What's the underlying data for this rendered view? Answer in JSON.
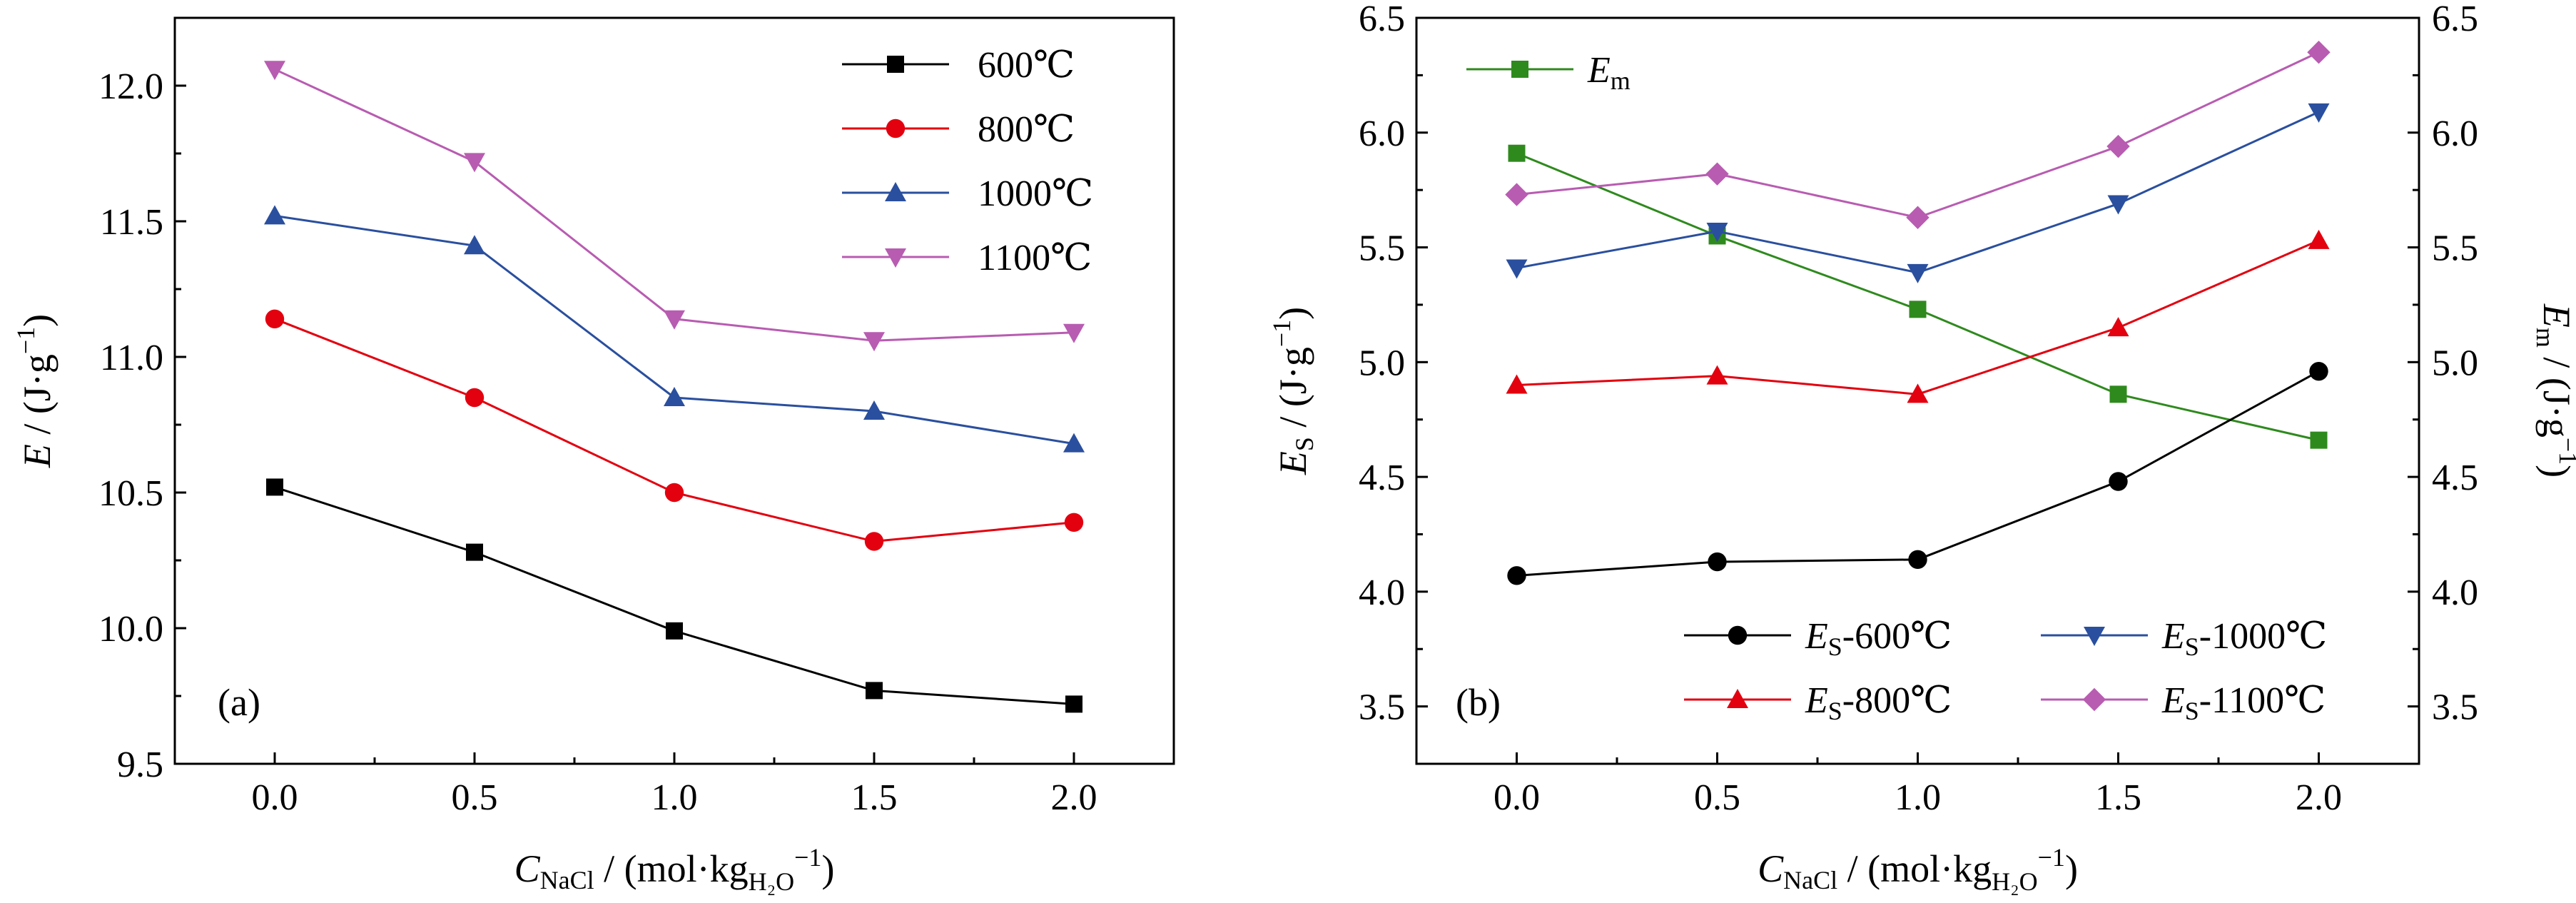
{
  "chart_data": [
    {
      "type": "line",
      "panel_label": "(a)",
      "x": [
        0.0,
        0.5,
        1.0,
        1.5,
        2.0
      ],
      "x_tick_labels": [
        "0.0",
        "0.5",
        "1.0",
        "1.5",
        "2.0"
      ],
      "xlim": [
        -0.25,
        2.25
      ],
      "ylim": [
        9.5,
        12.25
      ],
      "y_ticks": [
        9.5,
        10.0,
        10.5,
        11.0,
        11.5,
        12.0
      ],
      "y_tick_labels": [
        "9.5",
        "10.0",
        "10.5",
        "11.0",
        "11.5",
        "12.0"
      ],
      "xlabel": {
        "main": "C",
        "sub": "NaCl",
        "unit_open": " / (mol·kg",
        "unit_sub": "H₂O",
        "unit_sup": "−1",
        "unit_close": ")"
      },
      "ylabel": {
        "main": "E",
        "unit_open": " / (J·g",
        "unit_sup": "−1",
        "unit_close": ")"
      },
      "legend_position": "top-right",
      "grid": false,
      "series": [
        {
          "name": "600℃",
          "color": "#000000",
          "marker": "square",
          "values": [
            10.52,
            10.28,
            9.99,
            9.77,
            9.72
          ]
        },
        {
          "name": "800℃",
          "color": "#e3000f",
          "marker": "circle",
          "values": [
            11.14,
            10.85,
            10.5,
            10.32,
            10.39
          ]
        },
        {
          "name": "1000℃",
          "color": "#2a4f9e",
          "marker": "triangle-up",
          "values": [
            11.52,
            11.41,
            10.85,
            10.8,
            10.68
          ]
        },
        {
          "name": "1100℃",
          "color": "#b85cb1",
          "marker": "triangle-down",
          "values": [
            12.06,
            11.72,
            11.14,
            11.06,
            11.09
          ]
        }
      ]
    },
    {
      "type": "line",
      "panel_label": "(b)",
      "x": [
        0.0,
        0.5,
        1.0,
        1.5,
        2.0
      ],
      "x_tick_labels": [
        "0.0",
        "0.5",
        "1.0",
        "1.5",
        "2.0"
      ],
      "xlim": [
        -0.25,
        2.25
      ],
      "ylim": [
        3.25,
        6.5
      ],
      "y_ticks": [
        3.5,
        4.0,
        4.5,
        5.0,
        5.5,
        6.0,
        6.5
      ],
      "y_tick_labels": [
        "3.5",
        "4.0",
        "4.5",
        "5.0",
        "5.5",
        "6.0",
        "6.5"
      ],
      "y2lim": [
        3.25,
        6.5
      ],
      "y2_ticks": [
        3.5,
        4.0,
        4.5,
        5.0,
        5.5,
        6.0,
        6.5
      ],
      "y2_tick_labels": [
        "3.5",
        "4.0",
        "4.5",
        "5.0",
        "5.5",
        "6.0",
        "6.5"
      ],
      "xlabel": {
        "main": "C",
        "sub": "NaCl",
        "unit_open": " / (mol·kg",
        "unit_sub": "H₂O",
        "unit_sup": "−1",
        "unit_close": ")"
      },
      "ylabel": {
        "main": "E",
        "sub": "S",
        "unit_open": " / (J·g",
        "unit_sup": "−1",
        "unit_close": ")"
      },
      "y2label": {
        "main": "E",
        "sub": "m",
        "unit_open": " / (J·g",
        "unit_sup": "−1",
        "unit_close": ")"
      },
      "grid": false,
      "series": [
        {
          "name": "E_m",
          "label_main": "E",
          "label_sub": "m",
          "label_suffix": "",
          "color": "#2f8a1e",
          "marker": "square",
          "axis": "right",
          "legend_position": "top-left",
          "values": [
            5.91,
            5.55,
            5.23,
            4.86,
            4.66
          ]
        },
        {
          "name": "E_S-600℃",
          "label_main": "E",
          "label_sub": "S",
          "label_suffix": "-600℃",
          "color": "#000000",
          "marker": "circle",
          "axis": "left",
          "legend_position": "bottom",
          "values": [
            4.07,
            4.13,
            4.14,
            4.48,
            4.96
          ]
        },
        {
          "name": "E_S-800℃",
          "label_main": "E",
          "label_sub": "S",
          "label_suffix": "-800℃",
          "color": "#e3000f",
          "marker": "triangle-up",
          "axis": "left",
          "legend_position": "bottom",
          "values": [
            4.9,
            4.94,
            4.86,
            5.15,
            5.53
          ]
        },
        {
          "name": "E_S-1000℃",
          "label_main": "E",
          "label_sub": "S",
          "label_suffix": "-1000℃",
          "color": "#2a4f9e",
          "marker": "triangle-down",
          "axis": "left",
          "legend_position": "bottom",
          "values": [
            5.41,
            5.57,
            5.39,
            5.69,
            6.09
          ]
        },
        {
          "name": "E_S-1100℃",
          "label_main": "E",
          "label_sub": "S",
          "label_suffix": "-1100℃",
          "color": "#b85cb1",
          "marker": "diamond",
          "axis": "left",
          "legend_position": "bottom",
          "values": [
            5.73,
            5.82,
            5.63,
            5.94,
            6.35
          ]
        }
      ]
    }
  ]
}
